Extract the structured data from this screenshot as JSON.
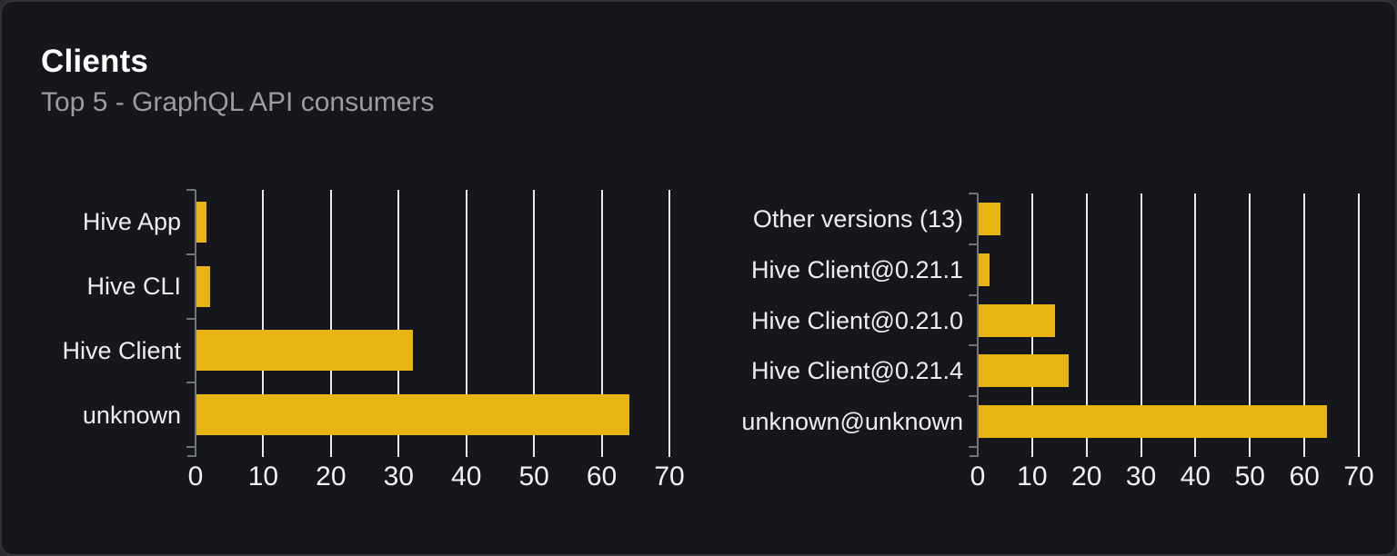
{
  "card": {
    "title": "Clients",
    "subtitle": "Top 5 - GraphQL API consumers"
  },
  "colors": {
    "bar": "#e8b412",
    "card_background": "#16171c",
    "card_border": "#33343a",
    "gridline": "#e9e9ef",
    "axis": "#71737d",
    "tick_label": "#f2f2f4",
    "category_label": "#eeeef1",
    "title": "#ffffff",
    "subtitle": "#9b9ca4"
  },
  "chart_data": [
    {
      "type": "bar",
      "name": "clients",
      "orientation": "horizontal",
      "title": "",
      "categories": [
        "Hive App",
        "Hive CLI",
        "Hive Client",
        "unknown"
      ],
      "values": [
        1.5,
        2,
        32,
        64
      ],
      "xlabel": "",
      "ylabel": "",
      "xlim": [
        0,
        70
      ],
      "xticks": [
        0,
        10,
        20,
        30,
        40,
        50,
        60,
        70
      ],
      "grid": true,
      "legend": "none"
    },
    {
      "type": "bar",
      "name": "client-versions",
      "orientation": "horizontal",
      "title": "",
      "categories": [
        "Other versions (13)",
        "Hive Client@0.21.1",
        "Hive Client@0.21.0",
        "Hive Client@0.21.4",
        "unknown@unknown"
      ],
      "values": [
        4,
        2,
        14,
        16.5,
        64
      ],
      "xlabel": "",
      "ylabel": "",
      "xlim": [
        0,
        70
      ],
      "xticks": [
        0,
        10,
        20,
        30,
        40,
        50,
        60,
        70
      ],
      "grid": true,
      "legend": "none"
    }
  ]
}
